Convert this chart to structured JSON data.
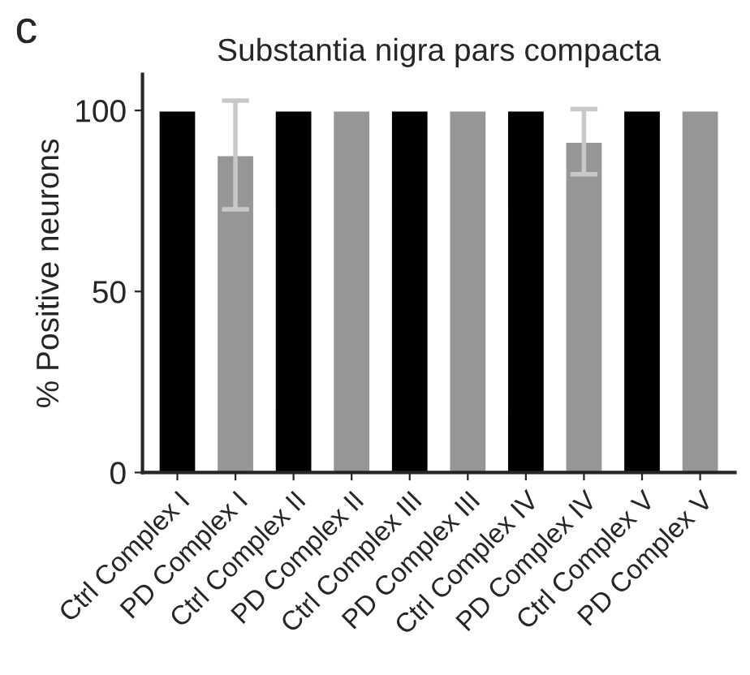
{
  "chart_data": {
    "type": "bar",
    "title": "Substantia nigra pars compacta",
    "ylabel": "% Positive neurons",
    "annotations": [
      "c"
    ],
    "categories": [
      "Ctrl Complex I",
      "PD Complex I",
      "Ctrl Complex II",
      "PD Complex II",
      "Ctrl Complex III",
      "PD Complex III",
      "Ctrl Complex IV",
      "PD Complex IV",
      "Ctrl Complex V",
      "PD Complex V"
    ],
    "values": [
      100,
      87.7,
      100,
      100,
      100,
      100,
      100,
      91.4,
      100,
      100
    ],
    "errors": [
      null,
      15,
      null,
      null,
      null,
      null,
      null,
      9,
      null,
      null
    ],
    "colors": [
      "#000000",
      "#969696",
      "#000000",
      "#969696",
      "#000000",
      "#969696",
      "#000000",
      "#969696",
      "#000000",
      "#969696"
    ],
    "ylim": [
      0,
      110
    ],
    "yticks": [
      0,
      50,
      100
    ],
    "grid": false,
    "legend": false
  }
}
